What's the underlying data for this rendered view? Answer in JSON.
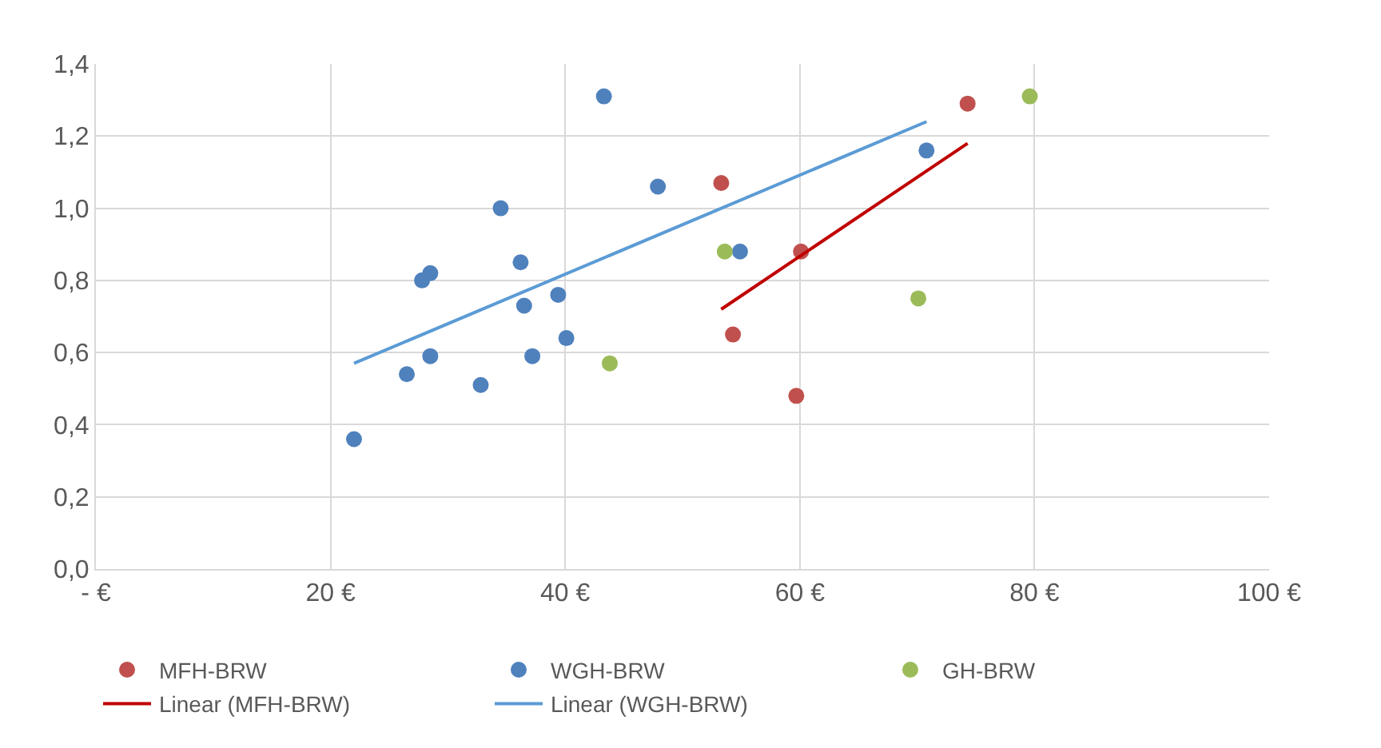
{
  "chart_data": {
    "type": "scatter",
    "marker": "circle",
    "grid": true,
    "legend": "bottom",
    "xlim": [
      0,
      100
    ],
    "xticks": [
      {
        "value": 0,
        "label": "- €"
      },
      {
        "value": 20,
        "label": "20 €"
      },
      {
        "value": 40,
        "label": "40 €"
      },
      {
        "value": 60,
        "label": "60 €"
      },
      {
        "value": 80,
        "label": "80 €"
      },
      {
        "value": 100,
        "label": "100 €"
      }
    ],
    "ylim": [
      0,
      1.4
    ],
    "yticks": [
      {
        "value": 0,
        "label": "0,0"
      },
      {
        "value": 0.2,
        "label": "0,2"
      },
      {
        "value": 0.4,
        "label": "0,4"
      },
      {
        "value": 0.6,
        "label": "0,6"
      },
      {
        "value": 0.8,
        "label": "0,8"
      },
      {
        "value": 1.0,
        "label": "1,0"
      },
      {
        "value": 1.2,
        "label": "1,2"
      },
      {
        "value": 1.4,
        "label": "1,4"
      }
    ],
    "series": [
      {
        "name": "MFH-BRW",
        "color": "#c0504d",
        "x": [
          53.3,
          54.3,
          59.7,
          60.1,
          74.3
        ],
        "values": [
          1.07,
          0.65,
          0.48,
          0.88,
          1.29
        ]
      },
      {
        "name": "WGH-BRW",
        "color": "#4f81bd",
        "x": [
          22.0,
          26.5,
          27.8,
          28.5,
          28.5,
          32.8,
          34.5,
          36.2,
          36.5,
          37.2,
          39.4,
          40.1,
          43.3,
          47.9,
          54.9,
          70.8
        ],
        "values": [
          0.36,
          0.54,
          0.8,
          0.82,
          0.59,
          0.51,
          1.0,
          0.85,
          0.73,
          0.59,
          0.76,
          0.64,
          1.31,
          1.06,
          0.88,
          1.16
        ]
      },
      {
        "name": "GH-BRW",
        "color": "#9bbb59",
        "x": [
          43.8,
          53.6,
          70.1,
          79.6
        ],
        "values": [
          0.57,
          0.88,
          0.75,
          1.31
        ]
      },
      {
        "name": "Linear (MFH-BRW)",
        "type": "line",
        "marker": "none",
        "color": "#c00000",
        "x": [
          53.3,
          74.3
        ],
        "values": [
          0.72,
          1.18
        ]
      },
      {
        "name": "Linear (WGH-BRW)",
        "type": "line",
        "marker": "none",
        "color": "#5b9bd5",
        "x": [
          22.0,
          70.8
        ],
        "values": [
          0.57,
          1.24
        ]
      }
    ]
  }
}
